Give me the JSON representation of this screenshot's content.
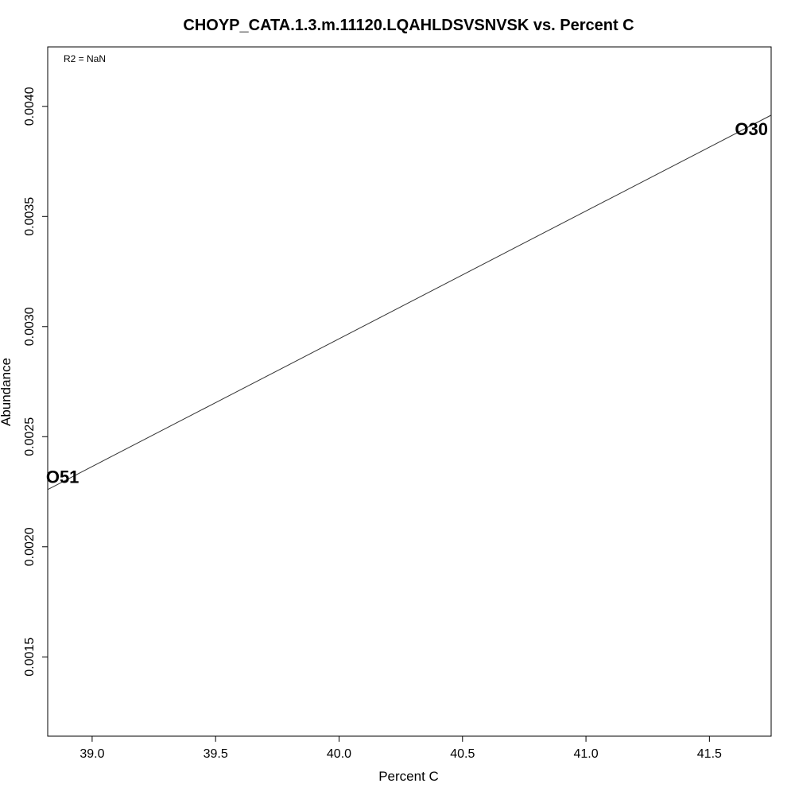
{
  "chart_data": {
    "type": "scatter",
    "title": "CHOYP_CATA.1.3.m.11120.LQAHLDSVSNVSK vs. Percent C",
    "xlabel": "Percent C",
    "ylabel": "Abundance",
    "xlim": [
      38.82,
      41.75
    ],
    "ylim": [
      0.00114,
      0.00427
    ],
    "x_ticks": [
      "39.0",
      "39.5",
      "40.0",
      "40.5",
      "41.0",
      "41.5"
    ],
    "y_ticks": [
      "0.0015",
      "0.0020",
      "0.0025",
      "0.0030",
      "0.0035",
      "0.0040"
    ],
    "points": [
      {
        "label": "O51",
        "x": 38.88,
        "y": 0.00231
      },
      {
        "label": "O30",
        "x": 41.67,
        "y": 0.00389
      }
    ],
    "fit_line": {
      "x0": 38.82,
      "y0": 0.00226,
      "x1": 41.75,
      "y1": 0.00396
    },
    "annotation": "R2 = NaN",
    "grid": false,
    "colors": {
      "line": "#333333",
      "text": "#000000",
      "frame": "#000000"
    }
  }
}
